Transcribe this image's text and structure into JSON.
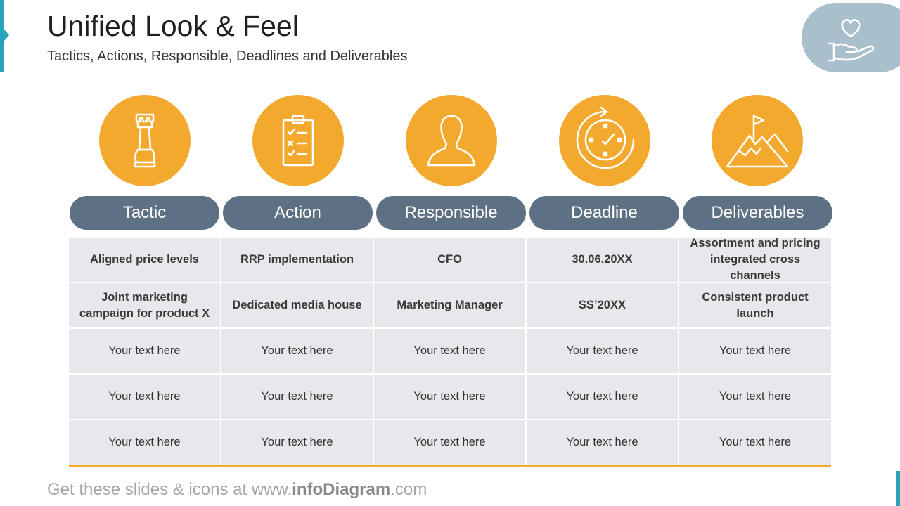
{
  "header": {
    "title": "Unified Look & Feel",
    "subtitle": "Tactics, Actions, Responsible, Deadlines and Deliverables",
    "badge_icon": "heart-in-hand-icon"
  },
  "colors": {
    "accent": "#2aa3b8",
    "orange": "#f2a92e",
    "pill": "#5e7083",
    "cell": "#e6e8ec",
    "badge": "#a9bfcb"
  },
  "columns": [
    {
      "label": "Tactic",
      "icon": "chess-rook-icon"
    },
    {
      "label": "Action",
      "icon": "checklist-clipboard-icon"
    },
    {
      "label": "Responsible",
      "icon": "person-icon"
    },
    {
      "label": "Deadline",
      "icon": "clock-refresh-icon"
    },
    {
      "label": "Deliverables",
      "icon": "mountain-flag-icon"
    }
  ],
  "rows": [
    [
      "Aligned price levels",
      "RRP implementation",
      "CFO",
      "30.06.20XX",
      "Assortment and pricing integrated cross channels"
    ],
    [
      "Joint marketing campaign for product X",
      "Dedicated media house",
      "Marketing Manager",
      "SS’20XX",
      "Consistent product launch"
    ],
    [
      "Your text here",
      "Your text here",
      "Your text here",
      "Your text here",
      "Your text here"
    ],
    [
      "Your text here",
      "Your text here",
      "Your text here",
      "Your text here",
      "Your text here"
    ],
    [
      "Your text here",
      "Your text here",
      "Your text here",
      "Your text here",
      "Your text here"
    ]
  ],
  "footer": {
    "prefix": "Get these slides & icons at www.",
    "brand": "infoDiagram",
    "suffix": ".com"
  }
}
